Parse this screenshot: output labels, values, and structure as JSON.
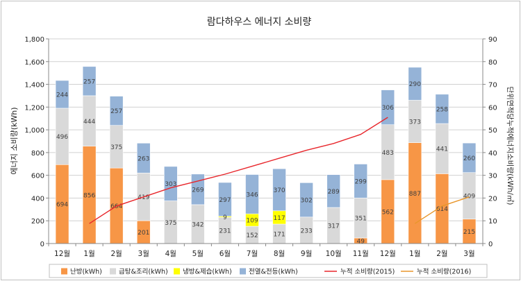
{
  "chart_data": {
    "type": "bar",
    "title": "람다하우스 에너지 소비량",
    "ylabel": "에너지 소비량(kWh)",
    "y2label": "단위면적당누적에너지소비량(kWh/㎡)",
    "ylim": [
      0,
      1800
    ],
    "y2lim": [
      0,
      90
    ],
    "yticks": [
      "0",
      "200",
      "400",
      "600",
      "800",
      "1,000",
      "1,200",
      "1,400",
      "1,600",
      "1,800"
    ],
    "y2ticks": [
      "0",
      "10",
      "20",
      "30",
      "40",
      "50",
      "60",
      "70",
      "80",
      "90"
    ],
    "grid": true,
    "legend": "bottom",
    "categories": [
      "12월",
      "1월",
      "2월",
      "3월",
      "4월",
      "5월",
      "6월",
      "7월",
      "8월",
      "9월",
      "10월",
      "11월",
      "12월",
      "1월",
      "2월",
      "3월"
    ],
    "series": [
      {
        "name": "난방(kWh)",
        "color": "#f79646",
        "values": [
          694,
          856,
          664,
          201,
          0,
          0,
          0,
          0,
          0,
          0,
          0,
          49,
          562,
          887,
          614,
          215
        ],
        "labels": [
          "694",
          "856",
          "664",
          "201",
          "",
          "",
          "",
          "",
          "",
          "",
          "",
          "49",
          "562",
          "887",
          "614",
          "215"
        ]
      },
      {
        "name": "급탕&조리(kWh)",
        "color": "#d9d9d9",
        "values": [
          496,
          444,
          375,
          419,
          375,
          342,
          231,
          152,
          171,
          233,
          317,
          351,
          483,
          373,
          441,
          409
        ],
        "labels": [
          "496",
          "444",
          "375",
          "419",
          "375",
          "342",
          "231",
          "152",
          "171",
          "233",
          "317",
          "351",
          "483",
          "373",
          "441",
          "409"
        ]
      },
      {
        "name": "냉방&제습(kWh)",
        "color": "#ffff00",
        "values": [
          0,
          0,
          0,
          0,
          0,
          0,
          9,
          109,
          117,
          0,
          0,
          0,
          0,
          0,
          0,
          0
        ],
        "labels": [
          "",
          "",
          "",
          "",
          "",
          "",
          "9",
          "109",
          "117",
          "",
          "",
          "",
          "",
          "",
          "",
          ""
        ]
      },
      {
        "name": "전열&전등(kWh)",
        "color": "#95b3d7",
        "values": [
          244,
          257,
          257,
          263,
          303,
          269,
          297,
          346,
          370,
          302,
          289,
          299,
          306,
          290,
          258,
          260
        ],
        "labels": [
          "244",
          "257",
          "257",
          "263",
          "303",
          "269",
          "297",
          "346",
          "370",
          "302",
          "289",
          "299",
          "306",
          "290",
          "258",
          "260"
        ]
      }
    ],
    "lines": [
      {
        "name": "누적 소비량(2015)",
        "color": "#e8262b",
        "axis": "right",
        "start": 1,
        "values": [
          8.8,
          16.5,
          20.5,
          24.5,
          27.5,
          30.5,
          34.0,
          37.5,
          41.0,
          44.0,
          48.0,
          55.5
        ]
      },
      {
        "name": "누적 소비량(2016)",
        "color": "#e8962b",
        "axis": "right",
        "start": 13,
        "values": [
          8.8,
          16.5,
          20.5
        ]
      }
    ]
  }
}
